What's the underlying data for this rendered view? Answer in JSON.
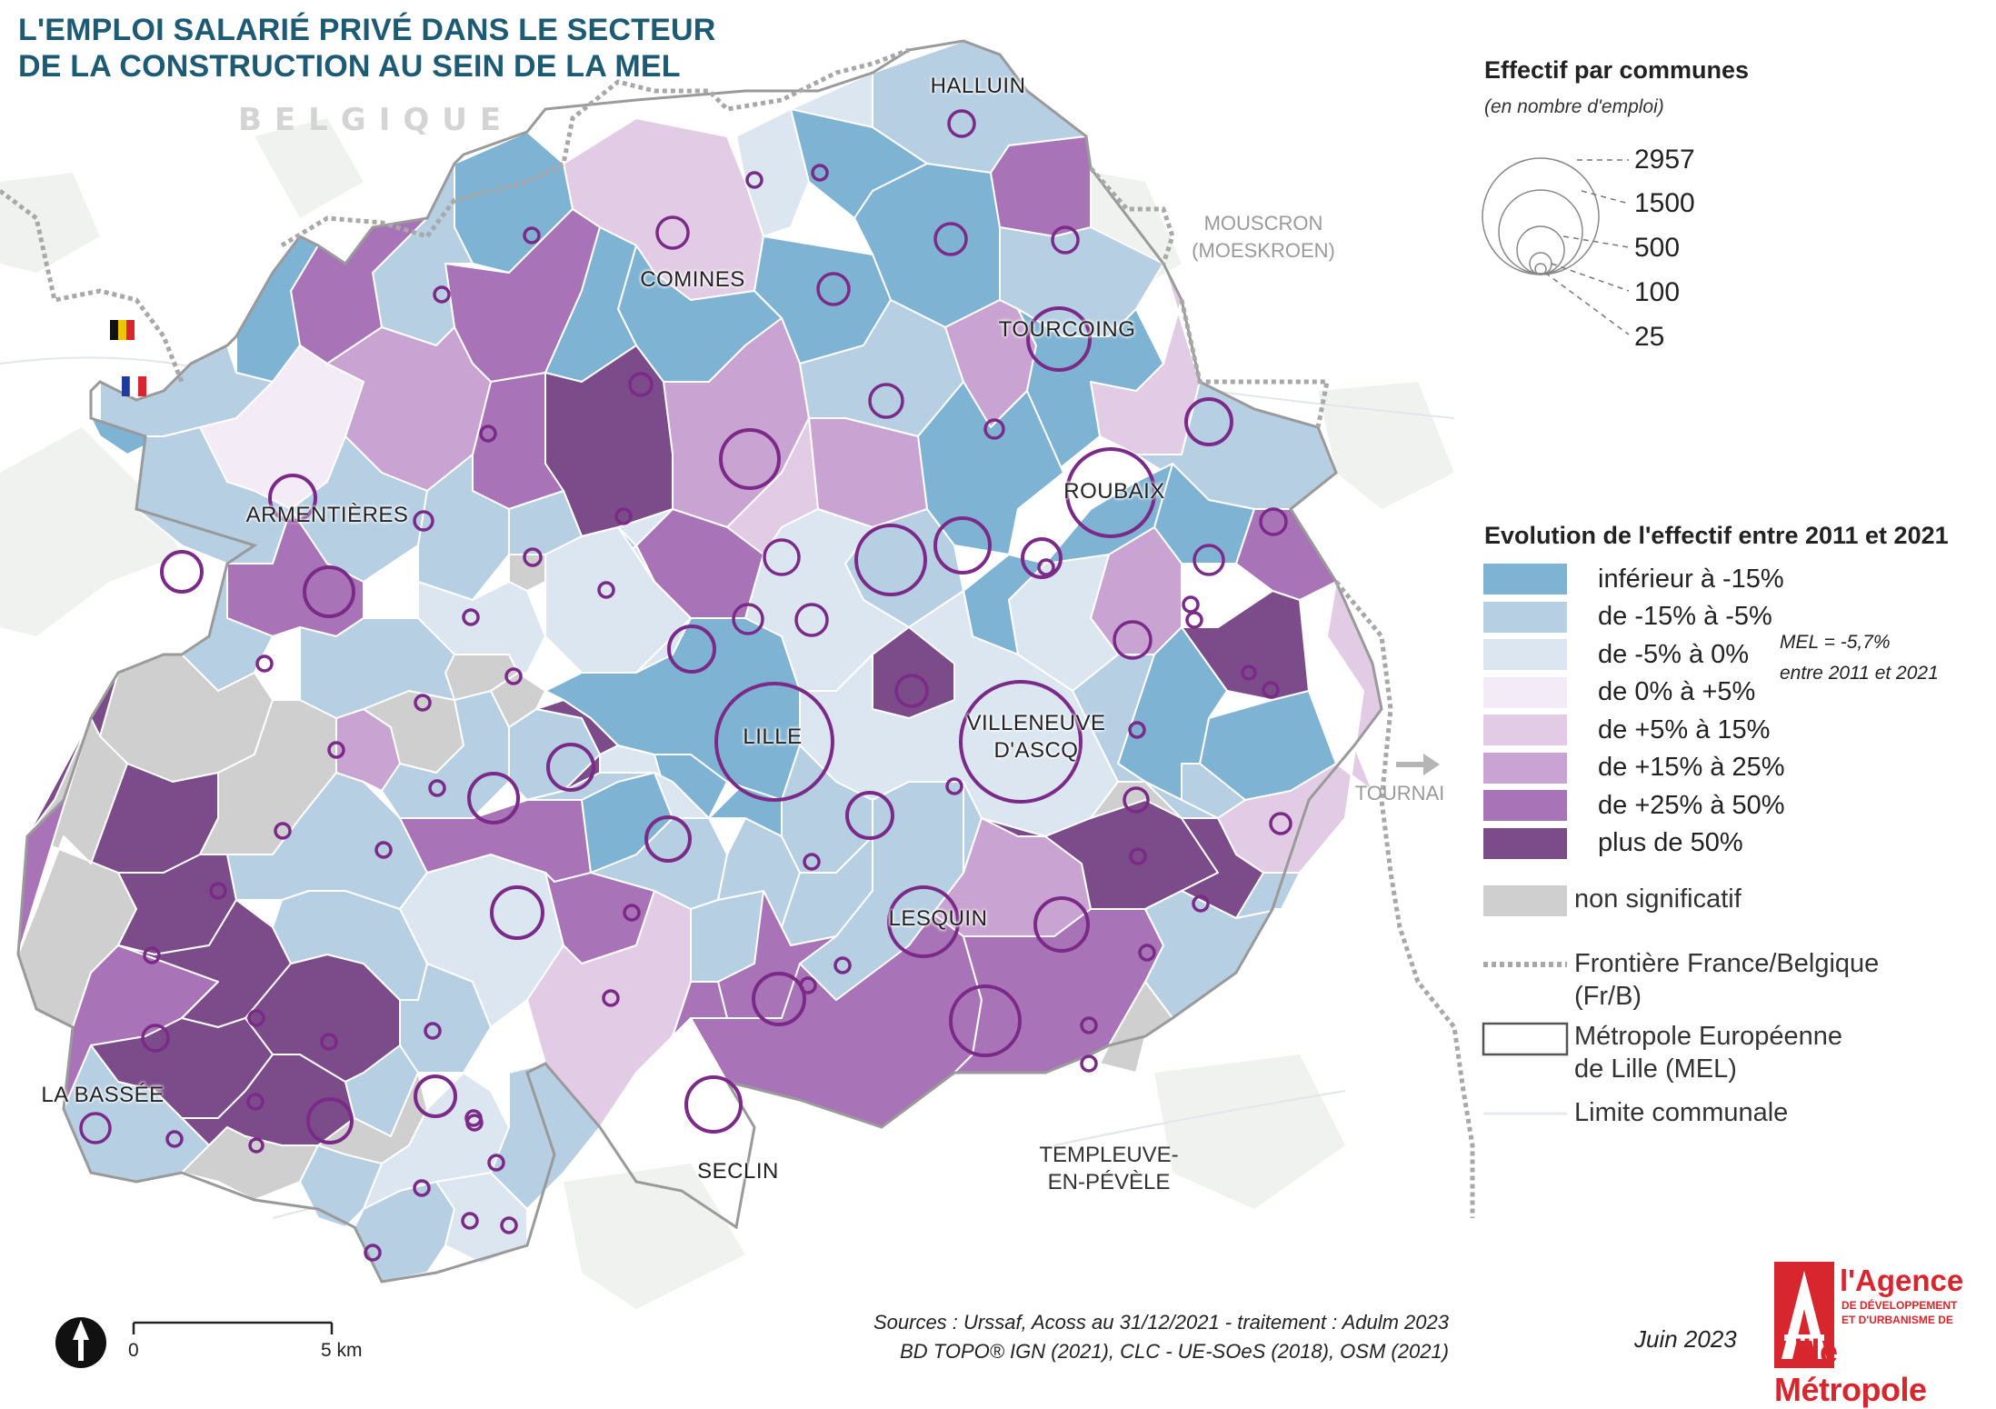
{
  "title": {
    "line1": "L'EMPLOI SALARIÉ PRIVÉ DANS LE SECTEUR",
    "line2": "DE LA CONSTRUCTION AU SEIN DE LA MEL"
  },
  "map": {
    "country_label": "BELGIQUE",
    "places": {
      "mouscron_1": "MOUSCRON",
      "mouscron_2": "(MOESKROEN)",
      "tournai": "TOURNAI",
      "templeuve_1": "TEMPLEUVE-",
      "templeuve_2": "EN-PÉVÈLE"
    },
    "cities": {
      "halluin": "HALLUIN",
      "comines": "COMINES",
      "tourcoing": "TOURCOING",
      "armentieres": "ARMENTIÈRES",
      "roubaix": "ROUBAIX",
      "lille": "LILLE",
      "villeneuve_1": "VILLENEUVE",
      "villeneuve_2": "D'ASCQ",
      "lesquin": "LESQUIN",
      "la_bassee": "LA BASSÉE",
      "seclin": "SECLIN"
    },
    "symbol_colors": {
      "circle_stroke": "#7b2a88",
      "border": "#999999"
    }
  },
  "legend": {
    "size_title": "Effectif par communes",
    "size_subtitle": "(en nombre d'emploi)",
    "sizes": [
      "2957",
      "1500",
      "500",
      "100",
      "25"
    ],
    "evolution_title": "Evolution de l'effectif entre 2011 et 2021",
    "classes": [
      {
        "label": "inférieur à -15%",
        "color": "#7fb3d3"
      },
      {
        "label": "de -15% à -5%",
        "color": "#b6cfe3"
      },
      {
        "label": "de -5% à 0%",
        "color": "#dbe6f1"
      },
      {
        "label": "de 0% à +5%",
        "color": "#f3ebf5"
      },
      {
        "label": "de +5% à 15%",
        "color": "#e2cce5"
      },
      {
        "label": "de +15% à 25%",
        "color": "#c9a3d1"
      },
      {
        "label": "de +25% à 50%",
        "color": "#a874b7"
      },
      {
        "label": "plus de 50%",
        "color": "#7c4b8a"
      }
    ],
    "non_significant": {
      "label": "non significatif",
      "color": "#cfcfcf"
    },
    "border_line_1": "Frontière France/Belgique",
    "border_line_2": "(Fr/B)",
    "mel_line_1": "Métropole Européenne",
    "mel_line_2": "de Lille (MEL)",
    "commune_limit": "Limite communale",
    "mel_note_1": "MEL = -5,7%",
    "mel_note_2": "entre 2011 et 2021"
  },
  "footer": {
    "sources_1": "Sources :  Urssaf, Acoss au 31/12/2021 - traitement : Adulm 2023",
    "sources_2": "BD TOPO® IGN (2021), CLC - UE-SOeS (2018), OSM (2021)",
    "scale_0": "0",
    "scale_5": "5 km",
    "date": "Juin 2023"
  },
  "logo": {
    "line1": "l'Agence",
    "line2": "DE DÉVELOPPEMENT",
    "line3": "ET D'URBANISME DE",
    "line4": "Lille Métropole"
  }
}
